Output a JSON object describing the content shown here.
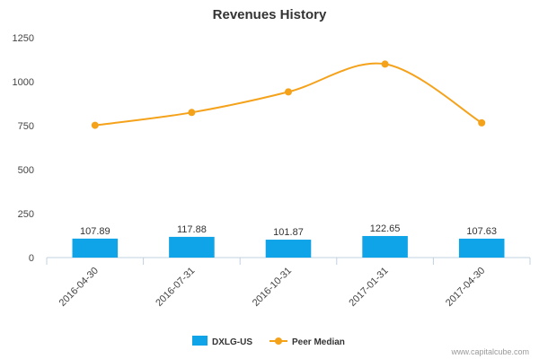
{
  "credit": "www.capitalcube.com",
  "chart_data": {
    "type": "bar",
    "title": "Revenues History",
    "xlabel": "",
    "ylabel": "",
    "categories": [
      "2016-04-30",
      "2016-07-31",
      "2016-10-31",
      "2017-01-31",
      "2017-04-30"
    ],
    "ylim": [
      0,
      1250
    ],
    "yticks": [
      0,
      250,
      500,
      750,
      1000,
      1250
    ],
    "grid": false,
    "legend_position": "bottom",
    "series": [
      {
        "name": "DXLG-US",
        "type": "bar",
        "color": "#0fa3e8",
        "values": [
          107.89,
          117.88,
          101.87,
          122.65,
          107.63
        ],
        "labels": [
          "107.89",
          "117.88",
          "101.87",
          "122.65",
          "107.63"
        ]
      },
      {
        "name": "Peer Median",
        "type": "line",
        "color": "#f5a21b",
        "smooth": true,
        "values": [
          752,
          825,
          942,
          1100,
          766
        ]
      }
    ]
  }
}
